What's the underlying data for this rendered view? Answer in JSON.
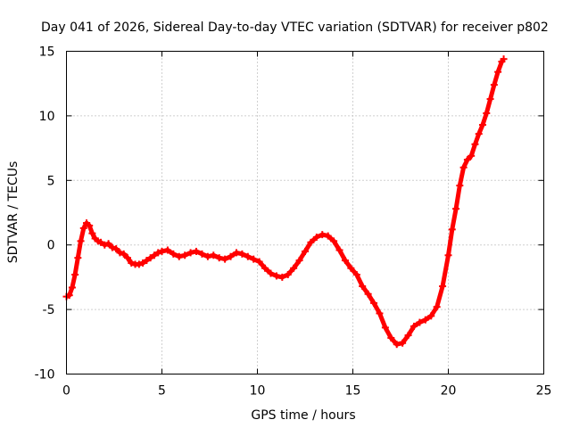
{
  "chart_data": {
    "type": "scatter",
    "title": "Day 041 of 2026, Sidereal Day-to-day VTEC variation (SDTVAR) for receiver p802",
    "xlabel": "GPS time / hours",
    "ylabel": "SDTVAR / TECUs",
    "xlim": [
      0,
      25
    ],
    "ylim": [
      -10,
      15
    ],
    "x_ticks": [
      0,
      5,
      10,
      15,
      20,
      25
    ],
    "y_ticks": [
      -10,
      -5,
      0,
      5,
      10,
      15
    ],
    "grid": true,
    "colors": {
      "series": "#ff0000",
      "grid": "#a0a0a0",
      "axis": "#000000"
    },
    "series": [
      {
        "name": "SDTVAR",
        "marker": "plus",
        "x": [
          0.0,
          0.15,
          0.3,
          0.45,
          0.6,
          0.75,
          0.9,
          1.05,
          1.2,
          1.35,
          1.5,
          1.65,
          1.8,
          2.0,
          2.2,
          2.4,
          2.6,
          2.8,
          3.0,
          3.2,
          3.4,
          3.6,
          3.8,
          4.0,
          4.2,
          4.4,
          4.6,
          4.8,
          5.0,
          5.3,
          5.6,
          5.9,
          6.2,
          6.5,
          6.8,
          7.1,
          7.4,
          7.7,
          8.0,
          8.3,
          8.6,
          8.9,
          9.2,
          9.5,
          9.8,
          10.1,
          10.4,
          10.7,
          11.0,
          11.3,
          11.6,
          11.9,
          12.2,
          12.5,
          12.8,
          13.1,
          13.4,
          13.7,
          14.0,
          14.3,
          14.6,
          14.9,
          15.2,
          15.5,
          15.8,
          16.1,
          16.4,
          16.7,
          17.0,
          17.3,
          17.6,
          17.9,
          18.2,
          18.5,
          18.8,
          19.1,
          19.4,
          19.7,
          20.0,
          20.2,
          20.4,
          20.6,
          20.8,
          21.0,
          21.2,
          21.4,
          21.6,
          21.8,
          22.0,
          22.2,
          22.4,
          22.6,
          22.8,
          22.9
        ],
        "y": [
          -4.0,
          -3.9,
          -3.3,
          -2.3,
          -1.0,
          0.3,
          1.3,
          1.7,
          1.5,
          0.9,
          0.5,
          0.3,
          0.2,
          0.0,
          0.1,
          -0.2,
          -0.3,
          -0.6,
          -0.7,
          -1.0,
          -1.4,
          -1.5,
          -1.5,
          -1.4,
          -1.2,
          -1.0,
          -0.8,
          -0.6,
          -0.5,
          -0.4,
          -0.7,
          -0.9,
          -0.8,
          -0.6,
          -0.5,
          -0.7,
          -0.9,
          -0.8,
          -1.0,
          -1.1,
          -0.9,
          -0.6,
          -0.7,
          -0.9,
          -1.1,
          -1.3,
          -1.8,
          -2.2,
          -2.4,
          -2.5,
          -2.3,
          -1.8,
          -1.2,
          -0.5,
          0.2,
          0.6,
          0.8,
          0.7,
          0.3,
          -0.4,
          -1.2,
          -1.8,
          -2.3,
          -3.2,
          -3.8,
          -4.5,
          -5.3,
          -6.4,
          -7.2,
          -7.7,
          -7.6,
          -7.0,
          -6.3,
          -6.0,
          -5.8,
          -5.5,
          -4.8,
          -3.2,
          -0.8,
          1.2,
          2.8,
          4.6,
          6.0,
          6.6,
          6.9,
          7.8,
          8.6,
          9.3,
          10.2,
          11.3,
          12.4,
          13.4,
          14.2,
          14.4
        ]
      }
    ]
  }
}
